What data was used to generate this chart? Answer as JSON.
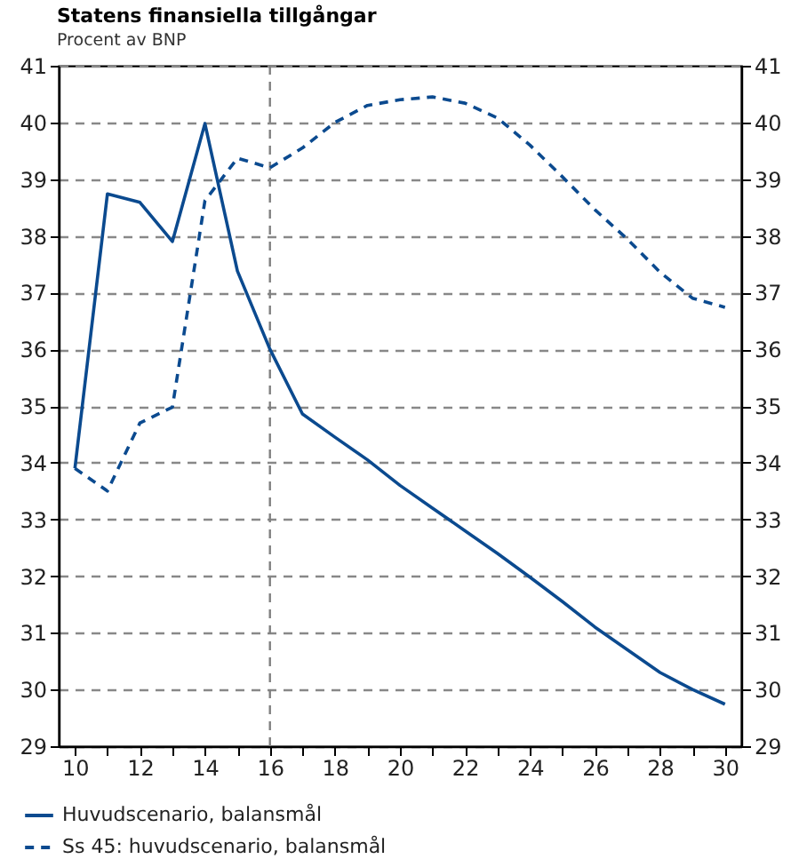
{
  "chart_data": {
    "type": "line",
    "title": "Statens finansiella tillgångar",
    "subtitle": "Procent av BNP",
    "x": [
      10,
      11,
      12,
      13,
      14,
      15,
      16,
      17,
      18,
      19,
      20,
      21,
      22,
      23,
      24,
      25,
      26,
      27,
      28,
      29,
      30
    ],
    "series": [
      {
        "name": "Huvudscenario, balansmål",
        "color": "#0b4a8f",
        "line_style": "solid",
        "values": [
          33.9,
          38.74,
          38.59,
          37.9,
          39.98,
          37.38,
          36.0,
          34.86,
          34.45,
          34.05,
          33.6,
          33.2,
          32.8,
          32.4,
          31.98,
          31.55,
          31.1,
          30.7,
          30.3,
          30.0,
          29.74
        ]
      },
      {
        "name": "Ss 45: huvudscenario, balansmål",
        "color": "#0b4a8f",
        "line_style": "dashed",
        "values": [
          33.9,
          33.5,
          34.7,
          34.98,
          38.62,
          39.37,
          39.2,
          39.55,
          40.0,
          40.3,
          40.4,
          40.45,
          40.34,
          40.08,
          39.6,
          39.04,
          38.46,
          37.94,
          37.36,
          36.9,
          36.74
        ]
      }
    ],
    "xlim": [
      9.5,
      30.5
    ],
    "xticks": [
      10,
      {
        "value": 11,
        "label": null
      },
      12,
      {
        "value": 13,
        "label": null
      },
      14,
      {
        "value": 15,
        "label": null
      },
      16,
      {
        "value": 17,
        "label": null
      },
      18,
      {
        "value": 19,
        "label": null
      },
      20,
      {
        "value": 21,
        "label": null
      },
      22,
      {
        "value": 23,
        "label": null
      },
      24,
      {
        "value": 25,
        "label": null
      },
      26,
      {
        "value": 27,
        "label": null
      },
      28,
      {
        "value": 29,
        "label": null
      },
      30
    ],
    "ylim": [
      29,
      41
    ],
    "yticks": [
      29,
      30,
      31,
      32,
      33,
      34,
      35,
      36,
      37,
      38,
      39,
      40,
      41
    ],
    "y2lim": [
      29,
      41
    ],
    "y2ticks": [
      29,
      30,
      31,
      32,
      33,
      34,
      35,
      36,
      37,
      38,
      39,
      40,
      41
    ],
    "ref_lines": [
      {
        "axis": "x",
        "value": 16,
        "color": "#808080",
        "line_style": "dashed"
      }
    ],
    "grid": "y",
    "legend": "bottom left",
    "marker": "none"
  }
}
